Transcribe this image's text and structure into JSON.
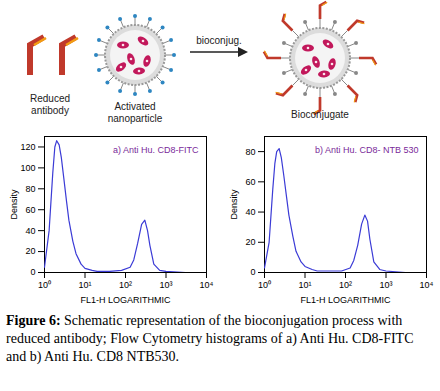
{
  "schematic": {
    "reduced_antibody": "Reduced antibody",
    "activated_nanoparticle": "Activated nanoparticle",
    "arrow_label": "bioconjug.",
    "bioconjugate": "Bioconjugate"
  },
  "chart_data": [
    {
      "type": "line",
      "title": "a) Anti Hu. CD8-FITC",
      "x_label": "FL1-H LOGARITHMIC",
      "y_label": "Density",
      "log": "x",
      "color": "#3b3bd6",
      "x": [
        1,
        1.3,
        1.6,
        1.8,
        2,
        2.3,
        2.6,
        3,
        3.5,
        4,
        5,
        6,
        8,
        10,
        15,
        20,
        40,
        80,
        130,
        160,
        200,
        250,
        300,
        350,
        400,
        500,
        700,
        1000,
        3000,
        10000
      ],
      "values": [
        5,
        40,
        95,
        120,
        126,
        122,
        110,
        90,
        68,
        50,
        30,
        18,
        8,
        4,
        2,
        1,
        1,
        2,
        5,
        12,
        28,
        46,
        50,
        40,
        26,
        8,
        2,
        1,
        0,
        0
      ],
      "xlim": [
        1,
        10000
      ],
      "xticks": [
        {
          "value": 1,
          "label": "10⁰"
        },
        {
          "value": 10,
          "label": "10¹"
        },
        {
          "value": 100,
          "label": "10²"
        },
        {
          "value": 1000,
          "label": "10³"
        },
        {
          "value": 10000,
          "label": "10⁴"
        }
      ],
      "ylim": [
        0,
        130
      ],
      "yticks": [
        0,
        20,
        40,
        60,
        80,
        100,
        120
      ]
    },
    {
      "type": "line",
      "title": "b) Anti Hu. CD8- NTB 530",
      "x_label": "FL1-H LOGARITHMIC",
      "y_label": "Density",
      "log": "x",
      "color": "#3b3bd6",
      "x": [
        1,
        1.3,
        1.6,
        1.8,
        2,
        2.3,
        2.6,
        3,
        3.5,
        4,
        5,
        6,
        8,
        10,
        15,
        20,
        40,
        80,
        130,
        160,
        200,
        250,
        300,
        350,
        400,
        500,
        700,
        1000,
        3000,
        10000
      ],
      "values": [
        3,
        20,
        55,
        72,
        80,
        82,
        76,
        64,
        50,
        38,
        24,
        14,
        7,
        4,
        2,
        1,
        1,
        1,
        3,
        8,
        18,
        32,
        38,
        34,
        22,
        7,
        2,
        1,
        0,
        0
      ],
      "xlim": [
        1,
        10000
      ],
      "xticks": [
        {
          "value": 1,
          "label": "10⁰"
        },
        {
          "value": 10,
          "label": "10¹"
        },
        {
          "value": 100,
          "label": "10²"
        },
        {
          "value": 1000,
          "label": "10³"
        },
        {
          "value": 10000,
          "label": "10⁴"
        }
      ],
      "ylim": [
        0,
        90
      ],
      "yticks": [
        0,
        20,
        40,
        60,
        80
      ]
    }
  ],
  "caption": {
    "label": "Figure 6:",
    "text": "Schematic representation of the bioconjugation process with reduced antibody; Flow Cytometry histograms of a) Anti Hu. CD8-FITC and b) Anti Hu. CD8 NTB530."
  }
}
